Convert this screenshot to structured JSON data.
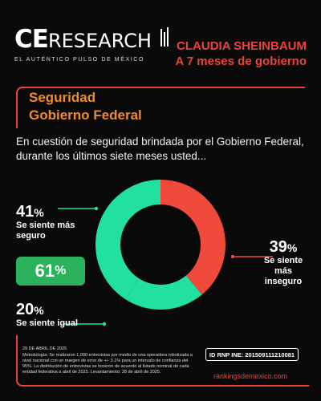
{
  "brand": {
    "name_bold": "CE",
    "name_thin": "RESEARCH",
    "tagline": "EL AUTÉNTICO PULSO DE MÉXICO"
  },
  "headline": {
    "line1": "CLAUDIA SHEINBAUM",
    "line2": "A 7 meses de gobierno"
  },
  "section": {
    "line1": "Seguridad",
    "line2": "Gobierno Federal"
  },
  "question": "En cuestión de seguridad brindada por el Gobierno Federal, durante los últimos siete meses usted...",
  "chart_data": {
    "type": "pie",
    "categories": [
      "Se siente más seguro",
      "Se siente igual",
      "Se siente más inseguro"
    ],
    "values": [
      41,
      20,
      39
    ],
    "unit": "%",
    "net_label": "61%",
    "colors": {
      "seguro": "#22e0a0",
      "igual": "#22e0a0",
      "inseguro": "#f04a3a",
      "net": "#2ab35c"
    }
  },
  "labels": {
    "seguro": {
      "pct": "41",
      "unit": "%",
      "line1": "Se siente más",
      "line2": "seguro"
    },
    "igual": {
      "pct": "20",
      "unit": "%",
      "line1": "Se siente igual"
    },
    "inseguro": {
      "pct": "39",
      "unit": "%",
      "line1": "Se siente",
      "line2": "más",
      "line3": "inseguro"
    },
    "net": {
      "value": "61",
      "unit": "%"
    }
  },
  "footer": {
    "date": "29 DE ABRIL DE 2025",
    "methodology": "Metodología: Se realizaron 1,000 entrevistas por medio de una operadora robotizada a nivel nacional con un margen de error de +/- 3.1% para un intervalo de confianza del 95%. La distribución de entrevistas se hicieron de acuerdo al listado nominal de cada entidad federativa a abril de 2025. Levantamiento: 28 de abril de 2025.",
    "id_label": "ID RNP INE: 201509111210081",
    "website": "rankingsdemexico.com"
  }
}
